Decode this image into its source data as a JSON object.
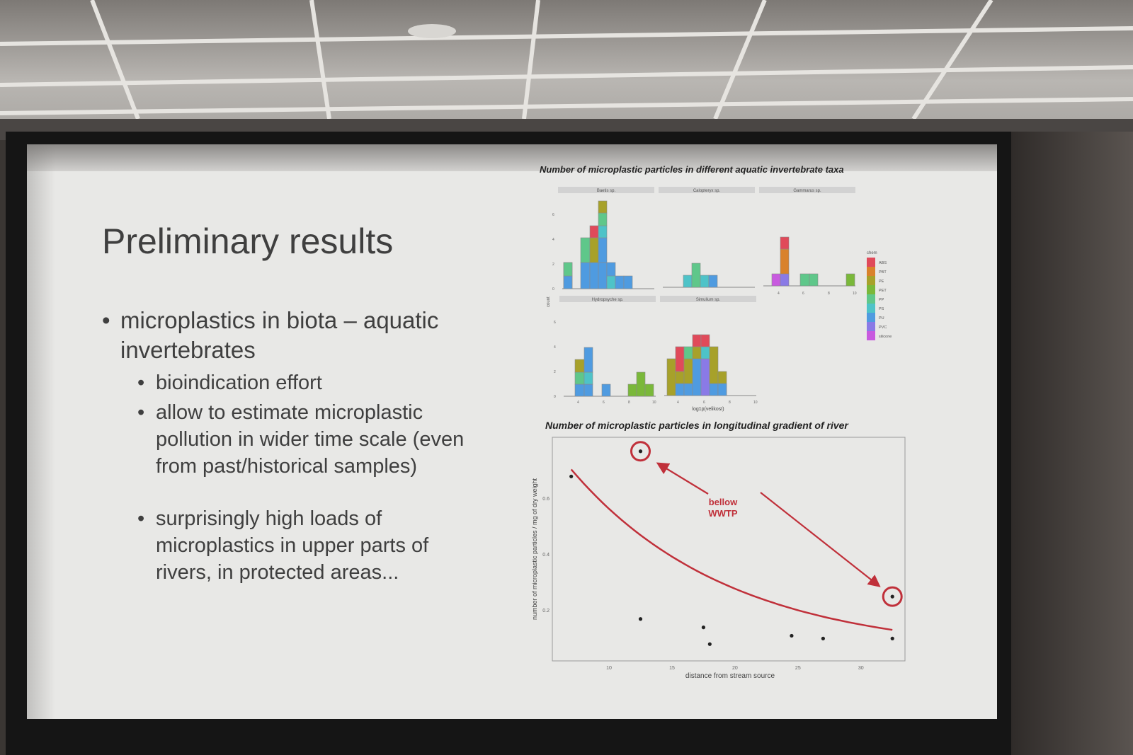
{
  "slide": {
    "title": "Preliminary results",
    "bullets": [
      {
        "text": "microplastics in biota – aquatic invertebrates",
        "level": 1
      },
      {
        "text": "bioindication effort",
        "level": 2
      },
      {
        "text": "allow to estimate microplastic pollution in wider time scale (even from past/historical samples)",
        "level": 2
      },
      {
        "text": "surprisingly high loads of microplastics in upper parts of rivers, in protected areas...",
        "level": 2
      }
    ]
  },
  "histogram": {
    "title": "Number of microplastic particles in different aquatic invertebrate taxa",
    "panels": [
      "Baetis sp.",
      "Calopteryx sp.",
      "Gammarus sp.",
      "Hydropsyche sp.",
      "Simulium sp."
    ],
    "xlabel": "log1p(velikost)",
    "ylabel": "count",
    "legend_title": "chem",
    "legend": [
      {
        "label": "ABS",
        "color": "#e04a5a"
      },
      {
        "label": "PBT",
        "color": "#d9822b"
      },
      {
        "label": "PE",
        "color": "#a7a12a"
      },
      {
        "label": "PET",
        "color": "#7ab83a"
      },
      {
        "label": "PP",
        "color": "#5fc78a"
      },
      {
        "label": "PS",
        "color": "#4ec3c8"
      },
      {
        "label": "PU",
        "color": "#4f9be0"
      },
      {
        "label": "PVC",
        "color": "#8a7ae6"
      },
      {
        "label": "silicone",
        "color": "#c85adf"
      }
    ],
    "y_ticks": [
      "0",
      "2",
      "4",
      "6"
    ],
    "x_ticks": [
      "4",
      "6",
      "8",
      "10"
    ]
  },
  "chart_data": {
    "type": "scatter",
    "title": "Number of microplastic particles in longitudinal gradient of river",
    "xlabel": "distance from stream source",
    "ylabel": "number of microplastic particles / mg of dry weight",
    "xlim": [
      5.5,
      33.5
    ],
    "ylim": [
      0.02,
      0.82
    ],
    "x_ticks": [
      10,
      15,
      20,
      25,
      30
    ],
    "y_ticks": [
      0.2,
      0.4,
      0.6
    ],
    "points": [
      {
        "x": 7,
        "y": 0.68
      },
      {
        "x": 12.5,
        "y": 0.77
      },
      {
        "x": 12.5,
        "y": 0.17
      },
      {
        "x": 17.5,
        "y": 0.14
      },
      {
        "x": 18,
        "y": 0.08
      },
      {
        "x": 24.5,
        "y": 0.11
      },
      {
        "x": 27,
        "y": 0.1
      },
      {
        "x": 32.5,
        "y": 0.1
      },
      {
        "x": 32.5,
        "y": 0.25
      }
    ],
    "highlighted": [
      1,
      8
    ],
    "annotation": "bellow WWTP",
    "annotation_color": "#c0303a",
    "trend_color": "#c0303a"
  }
}
